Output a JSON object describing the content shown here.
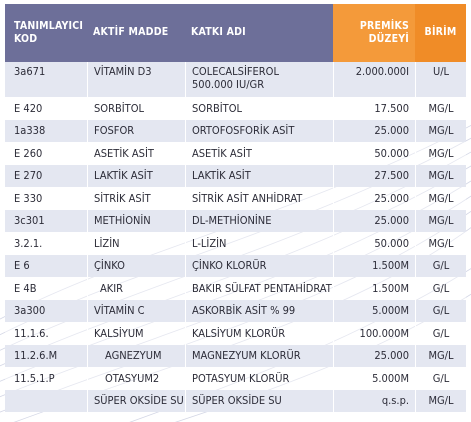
{
  "header": {
    "col1": "TANIMLAYICI KOD",
    "col2": "AKTİF MADDE",
    "col3": "KATKI ADI",
    "col4": "PREMİKS DÜZEYİ",
    "col5": "BİRİM"
  },
  "rows": [
    {
      "code": "3a671",
      "active": "VİTAMİN D3",
      "additive": "COLECALSİFEROL",
      "additive2": "500.000 IU/GR",
      "level": "2.000.000I",
      "unit": "U/L"
    },
    {
      "code": "E 420",
      "active": "SORBİTOL",
      "additive": "SORBİTOL",
      "additive2": "",
      "level": "17.500",
      "unit": "MG/L"
    },
    {
      "code": "1a338",
      "active": "FOSFOR",
      "additive": "ORTOFOSFORİK ASİT",
      "additive2": "",
      "level": "25.000",
      "unit": "MG/L"
    },
    {
      "code": "E 260",
      "active": "ASETİK ASİT",
      "additive": "ASETİK ASİT",
      "additive2": "",
      "level": "50.000",
      "unit": "MG/L"
    },
    {
      "code": "E 270",
      "active": "LAKTİK ASİT",
      "additive": "LAKTİK ASİT",
      "additive2": "",
      "level": "27.500",
      "unit": "MG/L"
    },
    {
      "code": "E 330",
      "active": "SİTRİK ASİT",
      "additive": "SİTRİK ASİT ANHİDRAT",
      "additive2": "",
      "level": "25.000",
      "unit": "MG/L"
    },
    {
      "code": "3c301",
      "active": "METHİONİN",
      "additive": "DL-METHİONİNE",
      "additive2": "",
      "level": "25.000",
      "unit": "MG/L"
    },
    {
      "code": "3.2.1.",
      "active": "LİZİN",
      "additive": "L-LİZİN",
      "additive2": "",
      "level": "50.000",
      "unit": "MG/L"
    },
    {
      "code": "E 6",
      "active": "ÇİNKO",
      "additive": "ÇİNKO KLORÜR",
      "additive2": "",
      "level": "1.500M",
      "unit": "G/L"
    },
    {
      "code": "E 4B",
      "active": "AKIR",
      "additive": "BAKIR SÜLFAT PENTAHİDRAT",
      "additive2": "",
      "level": "1.500M",
      "unit": "G/L"
    },
    {
      "code": "3a300",
      "active": "VİTAMİN C",
      "additive": "ASKORBİK ASİT % 99",
      "additive2": "",
      "level": "5.000M",
      "unit": "G/L"
    },
    {
      "code": "11.1.6.",
      "active": "KALSİYUM",
      "additive": "KALSİYUM KLORÜR",
      "additive2": "",
      "level": "100.000M",
      "unit": "G/L"
    },
    {
      "code": "11.2.6.M",
      "active": "AGNEZYUM",
      "additive": "MAGNEZYUM KLORÜR",
      "additive2": "",
      "level": "25.000",
      "unit": "MG/L"
    },
    {
      "code": "11.5.1.P",
      "active": "OTASYUM2",
      "additive": "POTASYUM KLORÜR",
      "additive2": "",
      "level": "5.000M",
      "unit": "G/L"
    },
    {
      "code": "",
      "active": "SÜPER OKSİDE SU",
      "additive": "SÜPER OKSİDE SU",
      "additive2": "",
      "level": "q.s.p.",
      "unit": "MG/L"
    }
  ]
}
